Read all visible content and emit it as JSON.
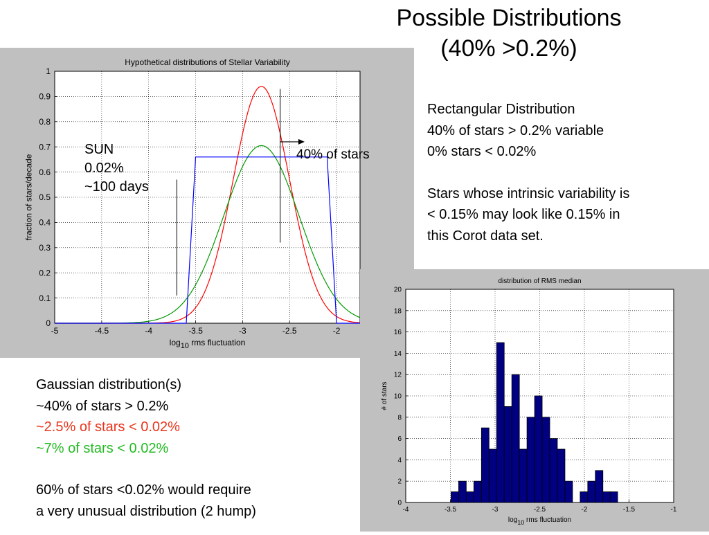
{
  "slide": {
    "title_line1": "Possible Distributions",
    "title_line2": "(40% >0.2%)"
  },
  "right_notes": {
    "line1": "Rectangular Distribution",
    "line2": "40% of stars > 0.2% variable",
    "line3": "0% stars < 0.02%",
    "line4": "Stars whose intrinsic variability is",
    "line5": "< 0.15% may look like 0.15% in",
    "line6": "this Corot data set."
  },
  "left_notes": {
    "line1": "Gaussian distribution(s)",
    "line2": "~40% of stars > 0.2%",
    "line3": "~2.5% of stars < 0.02%",
    "line4": "~7% of stars < 0.02%",
    "line5": "60% of stars <0.02% would require",
    "line6": "a very unusual distribution (2 hump)"
  },
  "annotations": {
    "sun_line1": "SUN",
    "sun_line2": "0.02%",
    "sun_line3": "~100 days",
    "arrow_text": "40% of stars"
  },
  "colors": {
    "red_series": "#ff0000",
    "green_series": "#009900",
    "blue_series": "#0000ff",
    "bar_fill": "#000080",
    "note_red": "#e8341c",
    "note_green": "#22bb22"
  },
  "chart_data": [
    {
      "type": "line",
      "title": "Hypothetical distributions of Stellar Variability",
      "xlabel_base": "log",
      "xlabel_sub": "10",
      "xlabel_rest": " rms fluctuation",
      "ylabel": "fraction of stars/decade",
      "xlim": [
        -5,
        -1.75
      ],
      "ylim": [
        0,
        1
      ],
      "xticks": [
        -5,
        -4.5,
        -4,
        -3.5,
        -3,
        -2.5,
        -2
      ],
      "xtick_labels": [
        "-5",
        "-4.5",
        "-4",
        "-3.5",
        "-3",
        "-2.5",
        "-2"
      ],
      "yticks": [
        0,
        0.1,
        0.2,
        0.3,
        0.4,
        0.5,
        0.6,
        0.7,
        0.8,
        0.9,
        1
      ],
      "ytick_labels": [
        "0",
        "0.1",
        "0.2",
        "0.3",
        "0.4",
        "0.5",
        "0.6",
        "0.7",
        "0.8",
        "0.9",
        "1"
      ],
      "grid": true,
      "series": [
        {
          "color": "red",
          "mean": -2.8,
          "sigma": 0.3,
          "peak": 0.94
        },
        {
          "color": "green",
          "mean": -2.8,
          "sigma": 0.4,
          "peak": 0.705
        },
        {
          "color": "blue",
          "x": [
            -5,
            -3.6,
            -3.5,
            -2.1,
            -2.0,
            -1.75
          ],
          "y": [
            0,
            0,
            0.66,
            0.66,
            0,
            0
          ]
        }
      ],
      "marker_lines": [
        {
          "x": -3.7,
          "y_from": 0.11,
          "y_to": 0.57
        },
        {
          "x": -2.6,
          "y_from": 0.32,
          "y_to": 0.93
        }
      ],
      "arrow": {
        "x_from": -2.6,
        "x_to": -2.34,
        "y": 0.72
      }
    },
    {
      "type": "bar",
      "title": "distribution of RMS median",
      "xlabel_base": "log",
      "xlabel_sub": "10",
      "xlabel_rest": " rms fluctuation",
      "ylabel": "# of stars",
      "xlim": [
        -4,
        -1
      ],
      "ylim": [
        0,
        20
      ],
      "xticks": [
        -4,
        -3.5,
        -3,
        -2.5,
        -2,
        -1.5,
        -1
      ],
      "xtick_labels": [
        "-4",
        "-3.5",
        "-3",
        "-2.5",
        "-2",
        "-1.5",
        "-1"
      ],
      "yticks": [
        0,
        2,
        4,
        6,
        8,
        10,
        12,
        14,
        16,
        18,
        20
      ],
      "ytick_labels": [
        "0",
        "2",
        "4",
        "6",
        "8",
        "10",
        "12",
        "14",
        "16",
        "18",
        "20"
      ],
      "grid": true,
      "bin_width": 0.085,
      "bin_centers": [
        -3.45,
        -3.365,
        -3.28,
        -3.195,
        -3.11,
        -3.025,
        -2.94,
        -2.855,
        -2.77,
        -2.685,
        -2.6,
        -2.515,
        -2.43,
        -2.345,
        -2.26,
        -2.175,
        -2.09,
        -2.005,
        -1.92,
        -1.835,
        -1.75,
        -1.665
      ],
      "values": [
        1,
        2,
        1,
        2,
        7,
        5,
        15,
        9,
        12,
        5,
        8,
        10,
        8,
        6,
        5,
        2,
        0,
        1,
        2,
        3,
        1,
        0
      ],
      "extra_bar": {
        "center": -1.67,
        "value": 1
      }
    }
  ]
}
